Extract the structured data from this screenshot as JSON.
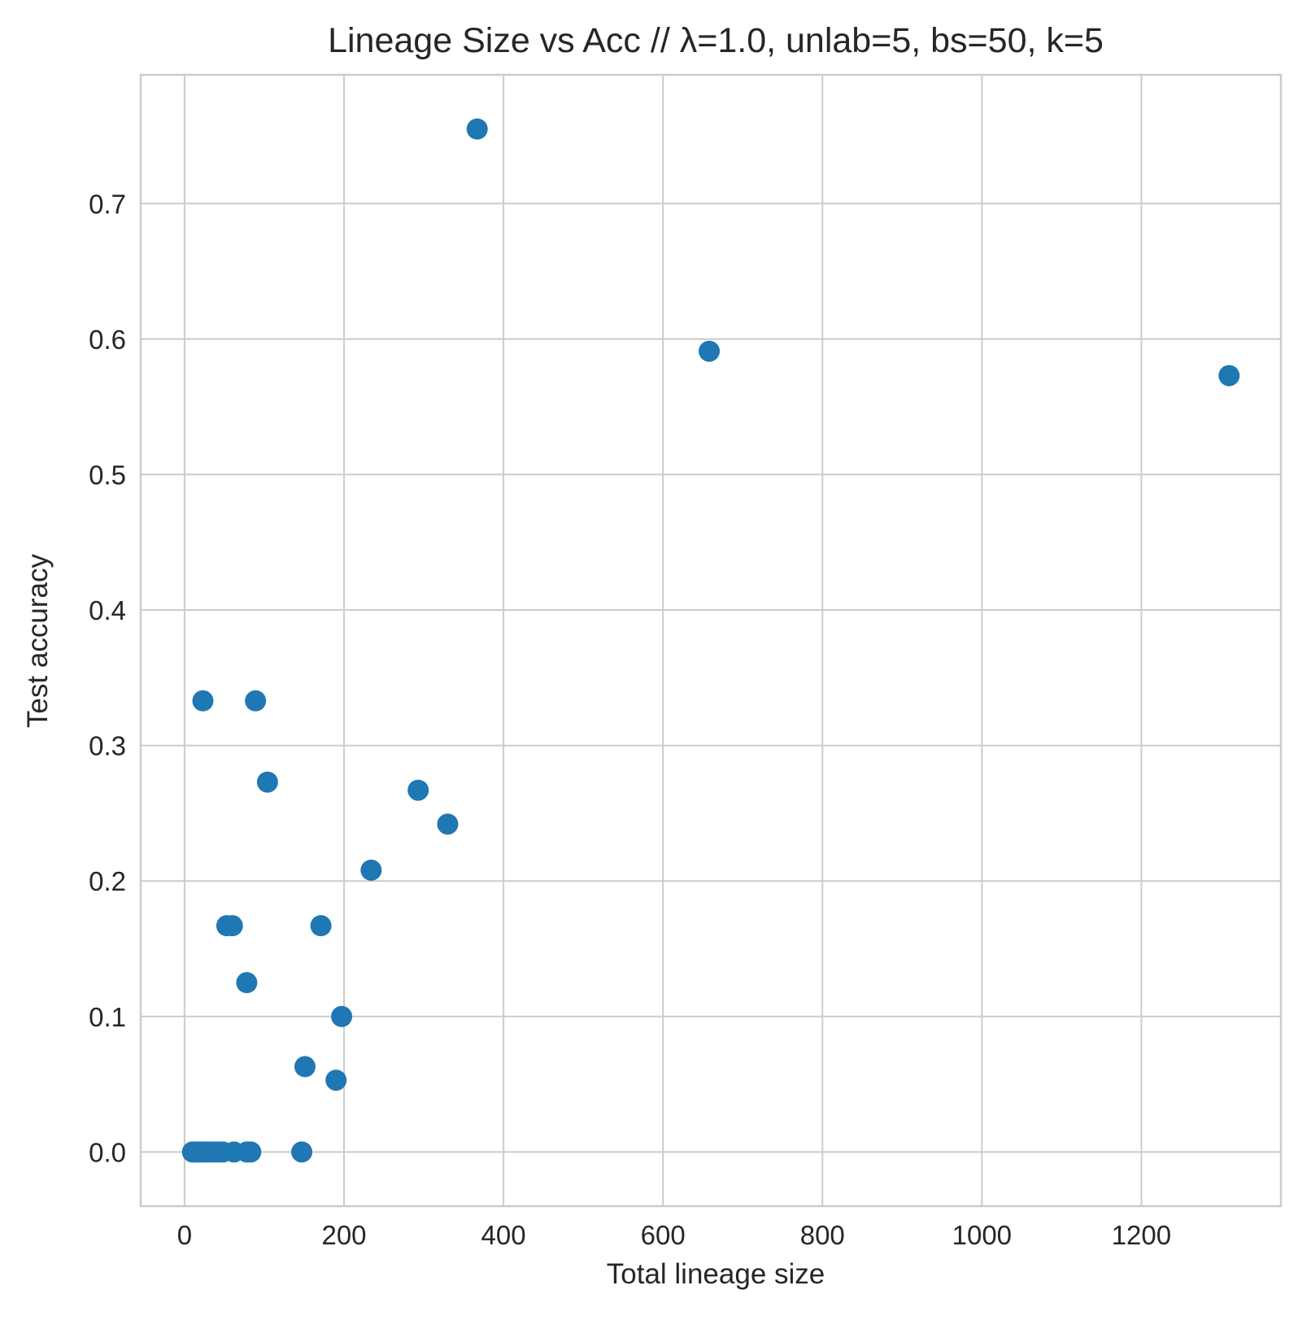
{
  "chart_data": {
    "type": "scatter",
    "title": "Lineage Size vs Acc // λ=1.0, unlab=5, bs=50, k=5",
    "xlabel": "Total lineage size",
    "ylabel": "Test accuracy",
    "xlim": [
      -55,
      1375
    ],
    "ylim": [
      -0.04,
      0.795
    ],
    "xticks": [
      0,
      200,
      400,
      600,
      800,
      1000,
      1200
    ],
    "xtick_labels": [
      "0",
      "200",
      "400",
      "600",
      "800",
      "1000",
      "1200"
    ],
    "yticks": [
      0.0,
      0.1,
      0.2,
      0.3,
      0.4,
      0.5,
      0.6,
      0.7
    ],
    "ytick_labels": [
      "0.0",
      "0.1",
      "0.2",
      "0.3",
      "0.4",
      "0.5",
      "0.6",
      "0.7"
    ],
    "grid": true,
    "marker_color": "#1f77b4",
    "grid_color": "#cccccc",
    "spine_color": "#cccccc",
    "series": [
      {
        "points": [
          {
            "x": 10,
            "y": 0.0
          },
          {
            "x": 13,
            "y": 0.0
          },
          {
            "x": 16,
            "y": 0.0
          },
          {
            "x": 20,
            "y": 0.0
          },
          {
            "x": 24,
            "y": 0.0
          },
          {
            "x": 28,
            "y": 0.0
          },
          {
            "x": 33,
            "y": 0.0
          },
          {
            "x": 38,
            "y": 0.0
          },
          {
            "x": 43,
            "y": 0.0
          },
          {
            "x": 48,
            "y": 0.0
          },
          {
            "x": 62,
            "y": 0.0
          },
          {
            "x": 78,
            "y": 0.0
          },
          {
            "x": 83,
            "y": 0.0
          },
          {
            "x": 147,
            "y": 0.0
          },
          {
            "x": 23,
            "y": 0.333
          },
          {
            "x": 89,
            "y": 0.333
          },
          {
            "x": 104,
            "y": 0.273
          },
          {
            "x": 53,
            "y": 0.167
          },
          {
            "x": 60,
            "y": 0.167
          },
          {
            "x": 171,
            "y": 0.167
          },
          {
            "x": 78,
            "y": 0.125
          },
          {
            "x": 197,
            "y": 0.1
          },
          {
            "x": 151,
            "y": 0.063
          },
          {
            "x": 190,
            "y": 0.053
          },
          {
            "x": 234,
            "y": 0.208
          },
          {
            "x": 293,
            "y": 0.267
          },
          {
            "x": 330,
            "y": 0.242
          },
          {
            "x": 367,
            "y": 0.755
          },
          {
            "x": 658,
            "y": 0.591
          },
          {
            "x": 1310,
            "y": 0.573
          }
        ]
      }
    ]
  }
}
